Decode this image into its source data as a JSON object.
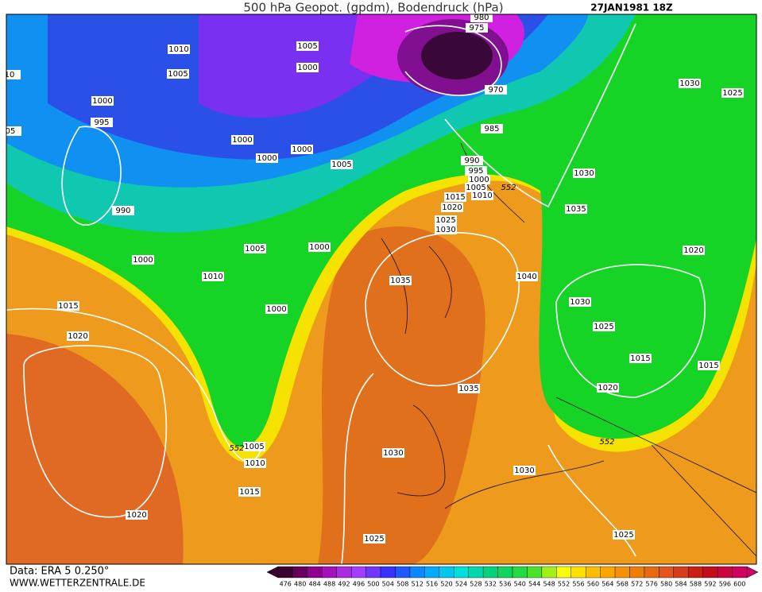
{
  "header": {
    "title": "500 hPa Geopot. (gpdm), Bodendruck (hPa)",
    "date": "27JAN1981 18Z"
  },
  "map": {
    "isobar_labels": [
      "1010",
      "1005",
      "1000",
      "1005",
      "1000",
      "995",
      "1000",
      "1000",
      "1000",
      "1005",
      "990",
      "1000",
      "1005",
      "1000",
      "1010",
      "1015",
      "1020",
      "1000",
      "980",
      "975",
      "970",
      "985",
      "990",
      "995",
      "1000",
      "1005",
      "1010",
      "1015",
      "1020",
      "1025",
      "1030",
      "1035",
      "1040",
      "1030",
      "1025",
      "1030",
      "1035",
      "1020",
      "1030",
      "1025",
      "1015",
      "1015",
      "1020",
      "1035",
      "1005",
      "1010",
      "1015",
      "1030",
      "1030",
      "1020",
      "1025",
      "1025",
      "10",
      "05"
    ],
    "contour_labels": [
      "552",
      "552",
      "552"
    ]
  },
  "footer": {
    "source": "Data: ERA 5 0.250°",
    "website": "WWW.WETTERZENTRALE.DE"
  },
  "legend": {
    "labels": [
      "476",
      "480",
      "484",
      "488",
      "492",
      "496",
      "500",
      "504",
      "508",
      "512",
      "516",
      "520",
      "524",
      "528",
      "532",
      "536",
      "540",
      "544",
      "548",
      "552",
      "556",
      "560",
      "564",
      "568",
      "572",
      "576",
      "580",
      "584",
      "588",
      "592",
      "596",
      "600"
    ]
  }
}
